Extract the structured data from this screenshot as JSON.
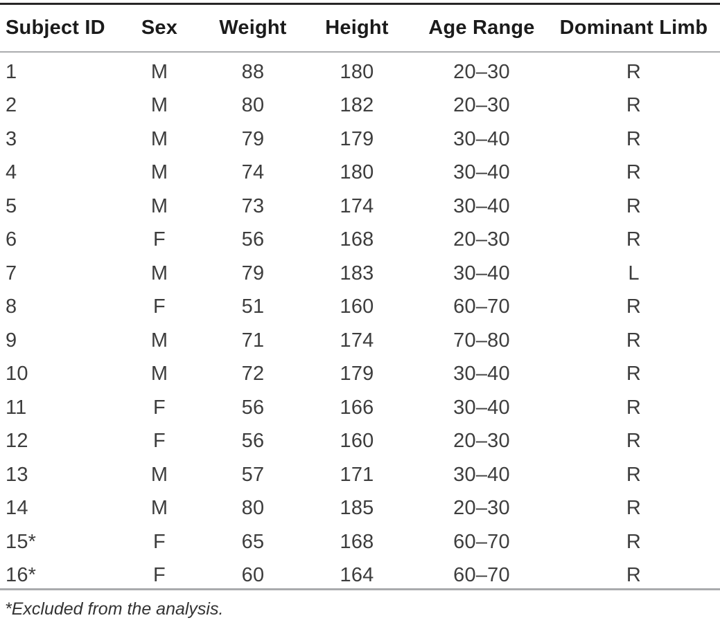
{
  "table": {
    "columns": [
      {
        "label": "Subject ID",
        "align": "left"
      },
      {
        "label": "Sex",
        "align": "center"
      },
      {
        "label": "Weight",
        "align": "center"
      },
      {
        "label": "Height",
        "align": "center"
      },
      {
        "label": "Age Range",
        "align": "center"
      },
      {
        "label": "Dominant Limb",
        "align": "center"
      }
    ],
    "rows": [
      [
        "1",
        "M",
        "88",
        "180",
        "20–30",
        "R"
      ],
      [
        "2",
        "M",
        "80",
        "182",
        "20–30",
        "R"
      ],
      [
        "3",
        "M",
        "79",
        "179",
        "30–40",
        "R"
      ],
      [
        "4",
        "M",
        "74",
        "180",
        "30–40",
        "R"
      ],
      [
        "5",
        "M",
        "73",
        "174",
        "30–40",
        "R"
      ],
      [
        "6",
        "F",
        "56",
        "168",
        "20–30",
        "R"
      ],
      [
        "7",
        "M",
        "79",
        "183",
        "30–40",
        "L"
      ],
      [
        "8",
        "F",
        "51",
        "160",
        "60–70",
        "R"
      ],
      [
        "9",
        "M",
        "71",
        "174",
        "70–80",
        "R"
      ],
      [
        "10",
        "M",
        "72",
        "179",
        "30–40",
        "R"
      ],
      [
        "11",
        "F",
        "56",
        "166",
        "30–40",
        "R"
      ],
      [
        "12",
        "F",
        "56",
        "160",
        "20–30",
        "R"
      ],
      [
        "13",
        "M",
        "57",
        "171",
        "30–40",
        "R"
      ],
      [
        "14",
        "M",
        "80",
        "185",
        "20–30",
        "R"
      ],
      [
        "15*",
        "F",
        "65",
        "168",
        "60–70",
        "R"
      ],
      [
        "16*",
        "F",
        "60",
        "164",
        "60–70",
        "R"
      ]
    ],
    "footnote": "*Excluded from the analysis."
  },
  "colors": {
    "top_rule": "#272526",
    "header_rule": "#aaacae",
    "bottom_rule": "#a9abad",
    "header_text": "#1b1b1b",
    "body_text": "#3d3d3d",
    "background": "#ffffff"
  }
}
